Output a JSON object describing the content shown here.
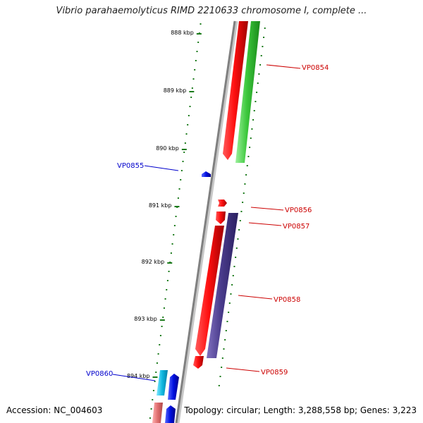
{
  "header": {
    "title": "Vibrio parahaemolyticus RIMD 2210633 chromosome I, complete ..."
  },
  "footer": {
    "accession": "Accession: NC_004603",
    "summary": "Topology: circular; Length: 3,288,558 bp; Genes: 3,223"
  },
  "scale": {
    "ticks": [
      "888 kbp",
      "889 kbp",
      "890 kbp",
      "891 kbp",
      "892 kbp",
      "893 kbp",
      "894 kbp"
    ],
    "tick_color": "#1a7a1a"
  },
  "genes": [
    {
      "label": "VP0854",
      "strand": "forward",
      "color": "#2c9c2c",
      "label_color": "#cc0000"
    },
    {
      "label": "VP0855",
      "strand": "reverse",
      "color": "#0000cc",
      "label_color": "#0000cc"
    },
    {
      "label": "VP0856",
      "strand": "forward",
      "color": "#cc0000",
      "label_color": "#cc0000"
    },
    {
      "label": "VP0857",
      "strand": "forward",
      "color": "#cc0000",
      "label_color": "#cc0000"
    },
    {
      "label": "VP0858",
      "strand": "forward",
      "color": "#4a3c8c",
      "label_color": "#cc0000"
    },
    {
      "label": "VP0859",
      "strand": "forward",
      "color": "#cc0000",
      "label_color": "#cc0000"
    },
    {
      "label": "VP0860",
      "strand": "reverse",
      "color": "#00a0c8",
      "label_color": "#0000cc"
    }
  ]
}
